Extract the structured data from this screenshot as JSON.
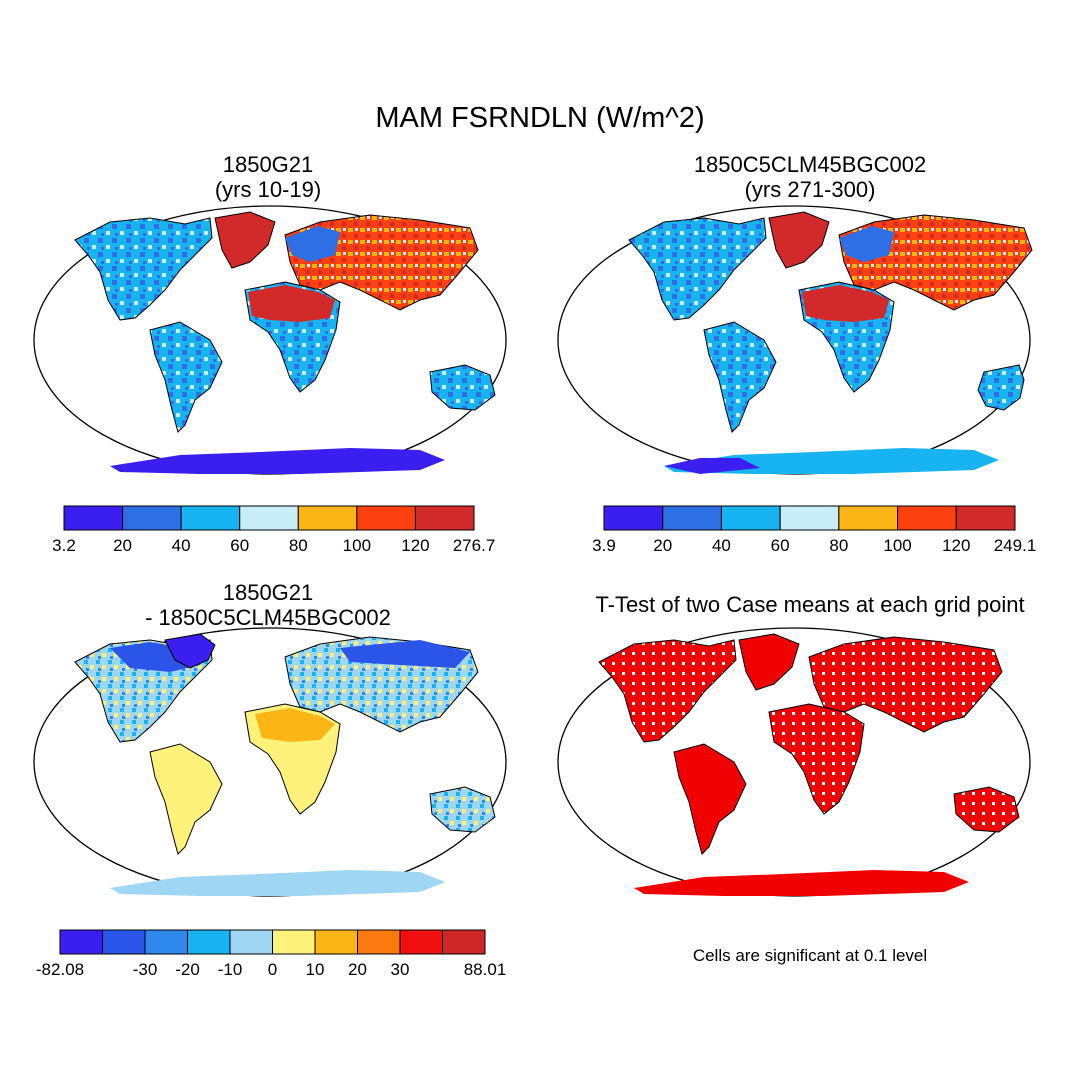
{
  "title": "MAM FSRNDLN (W/m^2)",
  "panels": [
    {
      "id": "case1",
      "title_line1": "1850G21",
      "title_line2": "(yrs 10-19)",
      "colorbar": {
        "colors": [
          "#3a1ff0",
          "#2f6fe6",
          "#18b4f2",
          "#c8ecf8",
          "#fbb514",
          "#fc4010",
          "#d22a2a"
        ],
        "tick_labels": [
          "3.2",
          "20",
          "40",
          "60",
          "80",
          "100",
          "120",
          "276.7"
        ]
      }
    },
    {
      "id": "case2",
      "title_line1": "1850C5CLM45BGC002",
      "title_line2": "(yrs 271-300)",
      "colorbar": {
        "colors": [
          "#3a1ff0",
          "#2f6fe6",
          "#18b4f2",
          "#c8ecf8",
          "#fbb514",
          "#fc4010",
          "#d22a2a"
        ],
        "tick_labels": [
          "3.9",
          "20",
          "40",
          "60",
          "80",
          "100",
          "120",
          "249.1"
        ]
      }
    },
    {
      "id": "difference",
      "title_line1": "1850G21",
      "title_line2": "- 1850C5CLM45BGC002",
      "colorbar": {
        "colors": [
          "#3a1ff0",
          "#2a55e8",
          "#2f88ee",
          "#18b4f2",
          "#9fd6f3",
          "#fff27a",
          "#fbb514",
          "#fa7a10",
          "#f01010",
          "#cc2626"
        ],
        "tick_labels": [
          "-82.08",
          "-30",
          "-20",
          "-10",
          "0",
          "10",
          "20",
          "30",
          "88.01"
        ]
      }
    },
    {
      "id": "ttest",
      "title_line1": "T-Test of two Case means at each grid point",
      "footnote": "Cells are significant at 0.1 level",
      "significance_color": "#f00000"
    }
  ]
}
